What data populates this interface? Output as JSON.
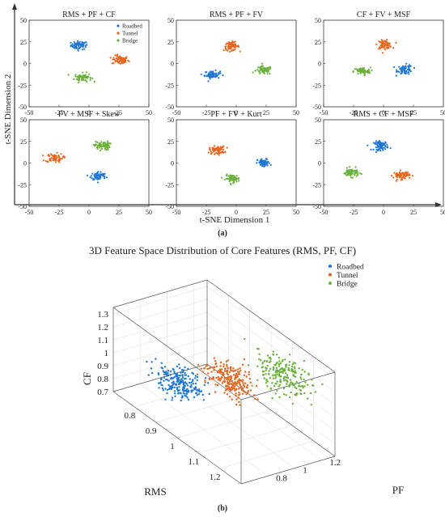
{
  "colors": {
    "roadbed": "#1f77d2",
    "tunnel": "#e6651d",
    "bridge": "#6ab13c",
    "axis": "#333333",
    "grid": "#dddddd"
  },
  "panel_a": {
    "label": "(a)",
    "shared_xlabel": "t-SNE Dimension 1",
    "shared_ylabel": "t-SNE Dimension 2"
  },
  "panel_b": {
    "label": "(b)"
  },
  "chart_data": [
    {
      "type": "scatter",
      "title": "RMS + PF + CF",
      "xlim": [
        -50,
        50
      ],
      "ylim": [
        -50,
        50
      ],
      "xticks": [
        "-50",
        "-25",
        "0",
        "25",
        "50"
      ],
      "yticks": [
        "-50",
        "-25",
        "0",
        "25",
        "50"
      ],
      "legend": "top-right",
      "series": [
        {
          "name": "Roadbed",
          "center": [
            -8,
            21
          ],
          "spread": [
            3.5,
            2.4
          ]
        },
        {
          "name": "Tunnel",
          "center": [
            26,
            4
          ],
          "spread": [
            3.5,
            2.5
          ]
        },
        {
          "name": "Bridge",
          "center": [
            -5,
            -16
          ],
          "spread": [
            3.5,
            2.5
          ]
        }
      ]
    },
    {
      "type": "scatter",
      "title": "RMS + PF + FV",
      "xlim": [
        -50,
        50
      ],
      "ylim": [
        -50,
        50
      ],
      "xticks": [
        "-50",
        "-25",
        "0",
        "25",
        "50"
      ],
      "yticks": [
        "-50",
        "-25",
        "0",
        "25",
        "50"
      ],
      "series": [
        {
          "name": "Roadbed",
          "center": [
            -20,
            -13
          ],
          "spread": [
            3.2,
            2.2
          ]
        },
        {
          "name": "Tunnel",
          "center": [
            -4,
            20
          ],
          "spread": [
            3.2,
            2.4
          ]
        },
        {
          "name": "Bridge",
          "center": [
            23,
            -8
          ],
          "spread": [
            3.4,
            2.4
          ]
        }
      ]
    },
    {
      "type": "scatter",
      "title": "CF + FV + MSF",
      "xlim": [
        -50,
        50
      ],
      "ylim": [
        -50,
        50
      ],
      "xticks": [
        "-50",
        "-25",
        "0",
        "25",
        "50"
      ],
      "yticks": [
        "-50",
        "-25",
        "0",
        "25",
        "50"
      ],
      "series": [
        {
          "name": "Roadbed",
          "center": [
            18,
            -7
          ],
          "spread": [
            3.2,
            2.8
          ]
        },
        {
          "name": "Tunnel",
          "center": [
            1,
            22
          ],
          "spread": [
            3.0,
            2.4
          ]
        },
        {
          "name": "Bridge",
          "center": [
            -18,
            -9
          ],
          "spread": [
            3.5,
            2.2
          ]
        }
      ]
    },
    {
      "type": "scatter",
      "title": "FV + MSF + Skew",
      "xlim": [
        -50,
        50
      ],
      "ylim": [
        -50,
        50
      ],
      "xticks": [
        "-50",
        "-25",
        "0",
        "25",
        "50"
      ],
      "yticks": [
        "-50",
        "-25",
        "0",
        "25",
        "50"
      ],
      "series": [
        {
          "name": "Roadbed",
          "center": [
            8,
            -15
          ],
          "spread": [
            3.2,
            2.6
          ]
        },
        {
          "name": "Tunnel",
          "center": [
            -29,
            6
          ],
          "spread": [
            3.6,
            2.5
          ]
        },
        {
          "name": "Bridge",
          "center": [
            11,
            20
          ],
          "spread": [
            3.2,
            2.5
          ]
        }
      ]
    },
    {
      "type": "scatter",
      "title": "PF + FV + Kurt",
      "xlim": [
        -50,
        50
      ],
      "ylim": [
        -50,
        50
      ],
      "xticks": [
        "-50",
        "-25",
        "0",
        "25",
        "50"
      ],
      "yticks": [
        "-50",
        "-25",
        "0",
        "25",
        "50"
      ],
      "series": [
        {
          "name": "Roadbed",
          "center": [
            23,
            0
          ],
          "spread": [
            2.6,
            2.4
          ]
        },
        {
          "name": "Tunnel",
          "center": [
            -16,
            15
          ],
          "spread": [
            3.2,
            2.2
          ]
        },
        {
          "name": "Bridge",
          "center": [
            -3,
            -18
          ],
          "spread": [
            3.0,
            2.2
          ]
        }
      ]
    },
    {
      "type": "scatter",
      "title": "RMS + CF + MSF",
      "xlim": [
        -50,
        50
      ],
      "ylim": [
        -50,
        50
      ],
      "xticks": [
        "-50",
        "-25",
        "0",
        "25",
        "50"
      ],
      "yticks": [
        "-50",
        "-25",
        "0",
        "25",
        "50"
      ],
      "series": [
        {
          "name": "Roadbed",
          "center": [
            -2,
            20
          ],
          "spread": [
            3.0,
            2.6
          ]
        },
        {
          "name": "Tunnel",
          "center": [
            15,
            -14
          ],
          "spread": [
            3.4,
            2.3
          ]
        },
        {
          "name": "Bridge",
          "center": [
            -27,
            -11
          ],
          "spread": [
            3.2,
            2.4
          ]
        }
      ]
    },
    {
      "type": "scatter3d",
      "title": "3D Feature Space Distribution of Core Features (RMS, PF, CF)",
      "xlabel": "RMS",
      "ylabel": "PF",
      "zlabel": "CF",
      "xlim": [
        0.7,
        1.3
      ],
      "ylim": [
        0.6,
        1.3
      ],
      "zlim": [
        0.7,
        1.35
      ],
      "xticks": [
        "0.8",
        "0.9",
        "1",
        "1.1",
        "1.2"
      ],
      "yticks": [
        "0.8",
        "1",
        "1.2"
      ],
      "zticks": [
        "0.7",
        "0.8",
        "0.9",
        "1",
        "1.1",
        "1.2",
        "1.3"
      ],
      "legend": "top-right",
      "series": [
        {
          "name": "Roadbed",
          "center": [
            0.85,
            0.85,
            0.86
          ],
          "spread": [
            0.04,
            0.05,
            0.045
          ],
          "count": 220
        },
        {
          "name": "Tunnel",
          "center": [
            1.0,
            1.0,
            1.03
          ],
          "spread": [
            0.045,
            0.055,
            0.05
          ],
          "count": 220
        },
        {
          "name": "Bridge",
          "center": [
            1.15,
            1.15,
            1.19
          ],
          "spread": [
            0.05,
            0.06,
            0.055
          ],
          "count": 220
        }
      ]
    }
  ]
}
